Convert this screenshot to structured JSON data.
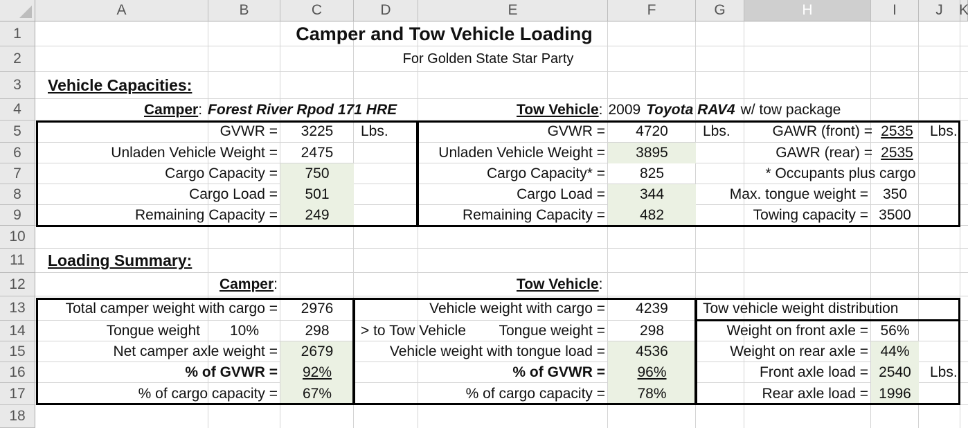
{
  "columns": [
    "A",
    "B",
    "C",
    "D",
    "E",
    "F",
    "G",
    "H",
    "I",
    "J",
    "K"
  ],
  "rows": [
    "1",
    "2",
    "3",
    "4",
    "5",
    "6",
    "7",
    "8",
    "9",
    "10",
    "11",
    "12",
    "13",
    "14",
    "15",
    "16",
    "17",
    "18"
  ],
  "colors": {
    "highlight_fill": "#ebf1e3",
    "header_bg": "#e9e9e9",
    "gridline": "#d4d4d4"
  },
  "title": "Camper and Tow Vehicle Loading",
  "subtitle": "For Golden State Star Party",
  "capacities": {
    "heading": "Vehicle Capacities:",
    "camper_label": "Camper",
    "camper_colon": ":",
    "camper_model": "Forest River Rpod 171 HRE",
    "tow_label": "Tow Vehicle",
    "tow_colon": ":",
    "tow_year": "2009",
    "tow_model": "Toyota RAV4",
    "tow_suffix": "w/ tow package",
    "camper": {
      "gvwr_label": "GVWR =",
      "gvwr": "3225",
      "gvwr_unit": "Lbs.",
      "unladen_label": "Unladen Vehicle Weight =",
      "unladen": "2475",
      "cargo_cap_label": "Cargo Capacity =",
      "cargo_cap": "750",
      "cargo_load_label": "Cargo Load =",
      "cargo_load": "501",
      "remaining_label": "Remaining Capacity =",
      "remaining": "249"
    },
    "tow": {
      "gvwr_label": "GVWR =",
      "gvwr": "4720",
      "gvwr_unit": "Lbs.",
      "unladen_label": "Unladen Vehicle Weight =",
      "unladen": "3895",
      "cargo_cap_label": "Cargo Capacity* =",
      "cargo_cap": "825",
      "cargo_load_label": "Cargo Load =",
      "cargo_load": "344",
      "remaining_label": "Remaining Capacity =",
      "remaining": "482"
    },
    "axle": {
      "gawr_front_label": "GAWR (front) =",
      "gawr_front": "2535",
      "gawr_front_unit": "Lbs.",
      "gawr_rear_label": "GAWR (rear) =",
      "gawr_rear": "2535",
      "note": "* Occupants plus cargo",
      "tongue_label": "Max. tongue weight =",
      "tongue": "350",
      "towing_label": "Towing capacity =",
      "towing": "3500"
    }
  },
  "summary": {
    "heading": "Loading Summary:",
    "camper_label": "Camper",
    "camper_colon": ":",
    "tow_label": "Tow Vehicle",
    "tow_colon": ":",
    "camper": {
      "total_label": "Total camper weight with cargo =",
      "total": "2976",
      "tongue_label": "Tongue weight",
      "tongue_pct": "10%",
      "tongue": "298",
      "net_label": "Net camper axle weight =",
      "net": "2679",
      "pct_gvwr_label": "% of GVWR =",
      "pct_gvwr": "92%",
      "pct_cargo_label": "% of cargo capacity =",
      "pct_cargo": "67%"
    },
    "tow": {
      "weight_label": "Vehicle weight with cargo =",
      "weight": "4239",
      "to_tow_label": "> to Tow Vehicle",
      "tongue_label": "Tongue weight =",
      "tongue": "298",
      "with_tongue_label": "Vehicle weight with tongue load =",
      "with_tongue": "4536",
      "pct_gvwr_label": "% of GVWR =",
      "pct_gvwr": "96%",
      "pct_cargo_label": "% of cargo capacity =",
      "pct_cargo": "78%"
    },
    "distribution": {
      "heading": "Tow vehicle weight distribution",
      "front_pct_label": "Weight on front axle =",
      "front_pct": "56%",
      "rear_pct_label": "Weight on rear axle =",
      "rear_pct": "44%",
      "front_load_label": "Front axle load =",
      "front_load": "2540",
      "front_load_unit": "Lbs.",
      "rear_load_label": "Rear axle load =",
      "rear_load": "1996"
    }
  }
}
